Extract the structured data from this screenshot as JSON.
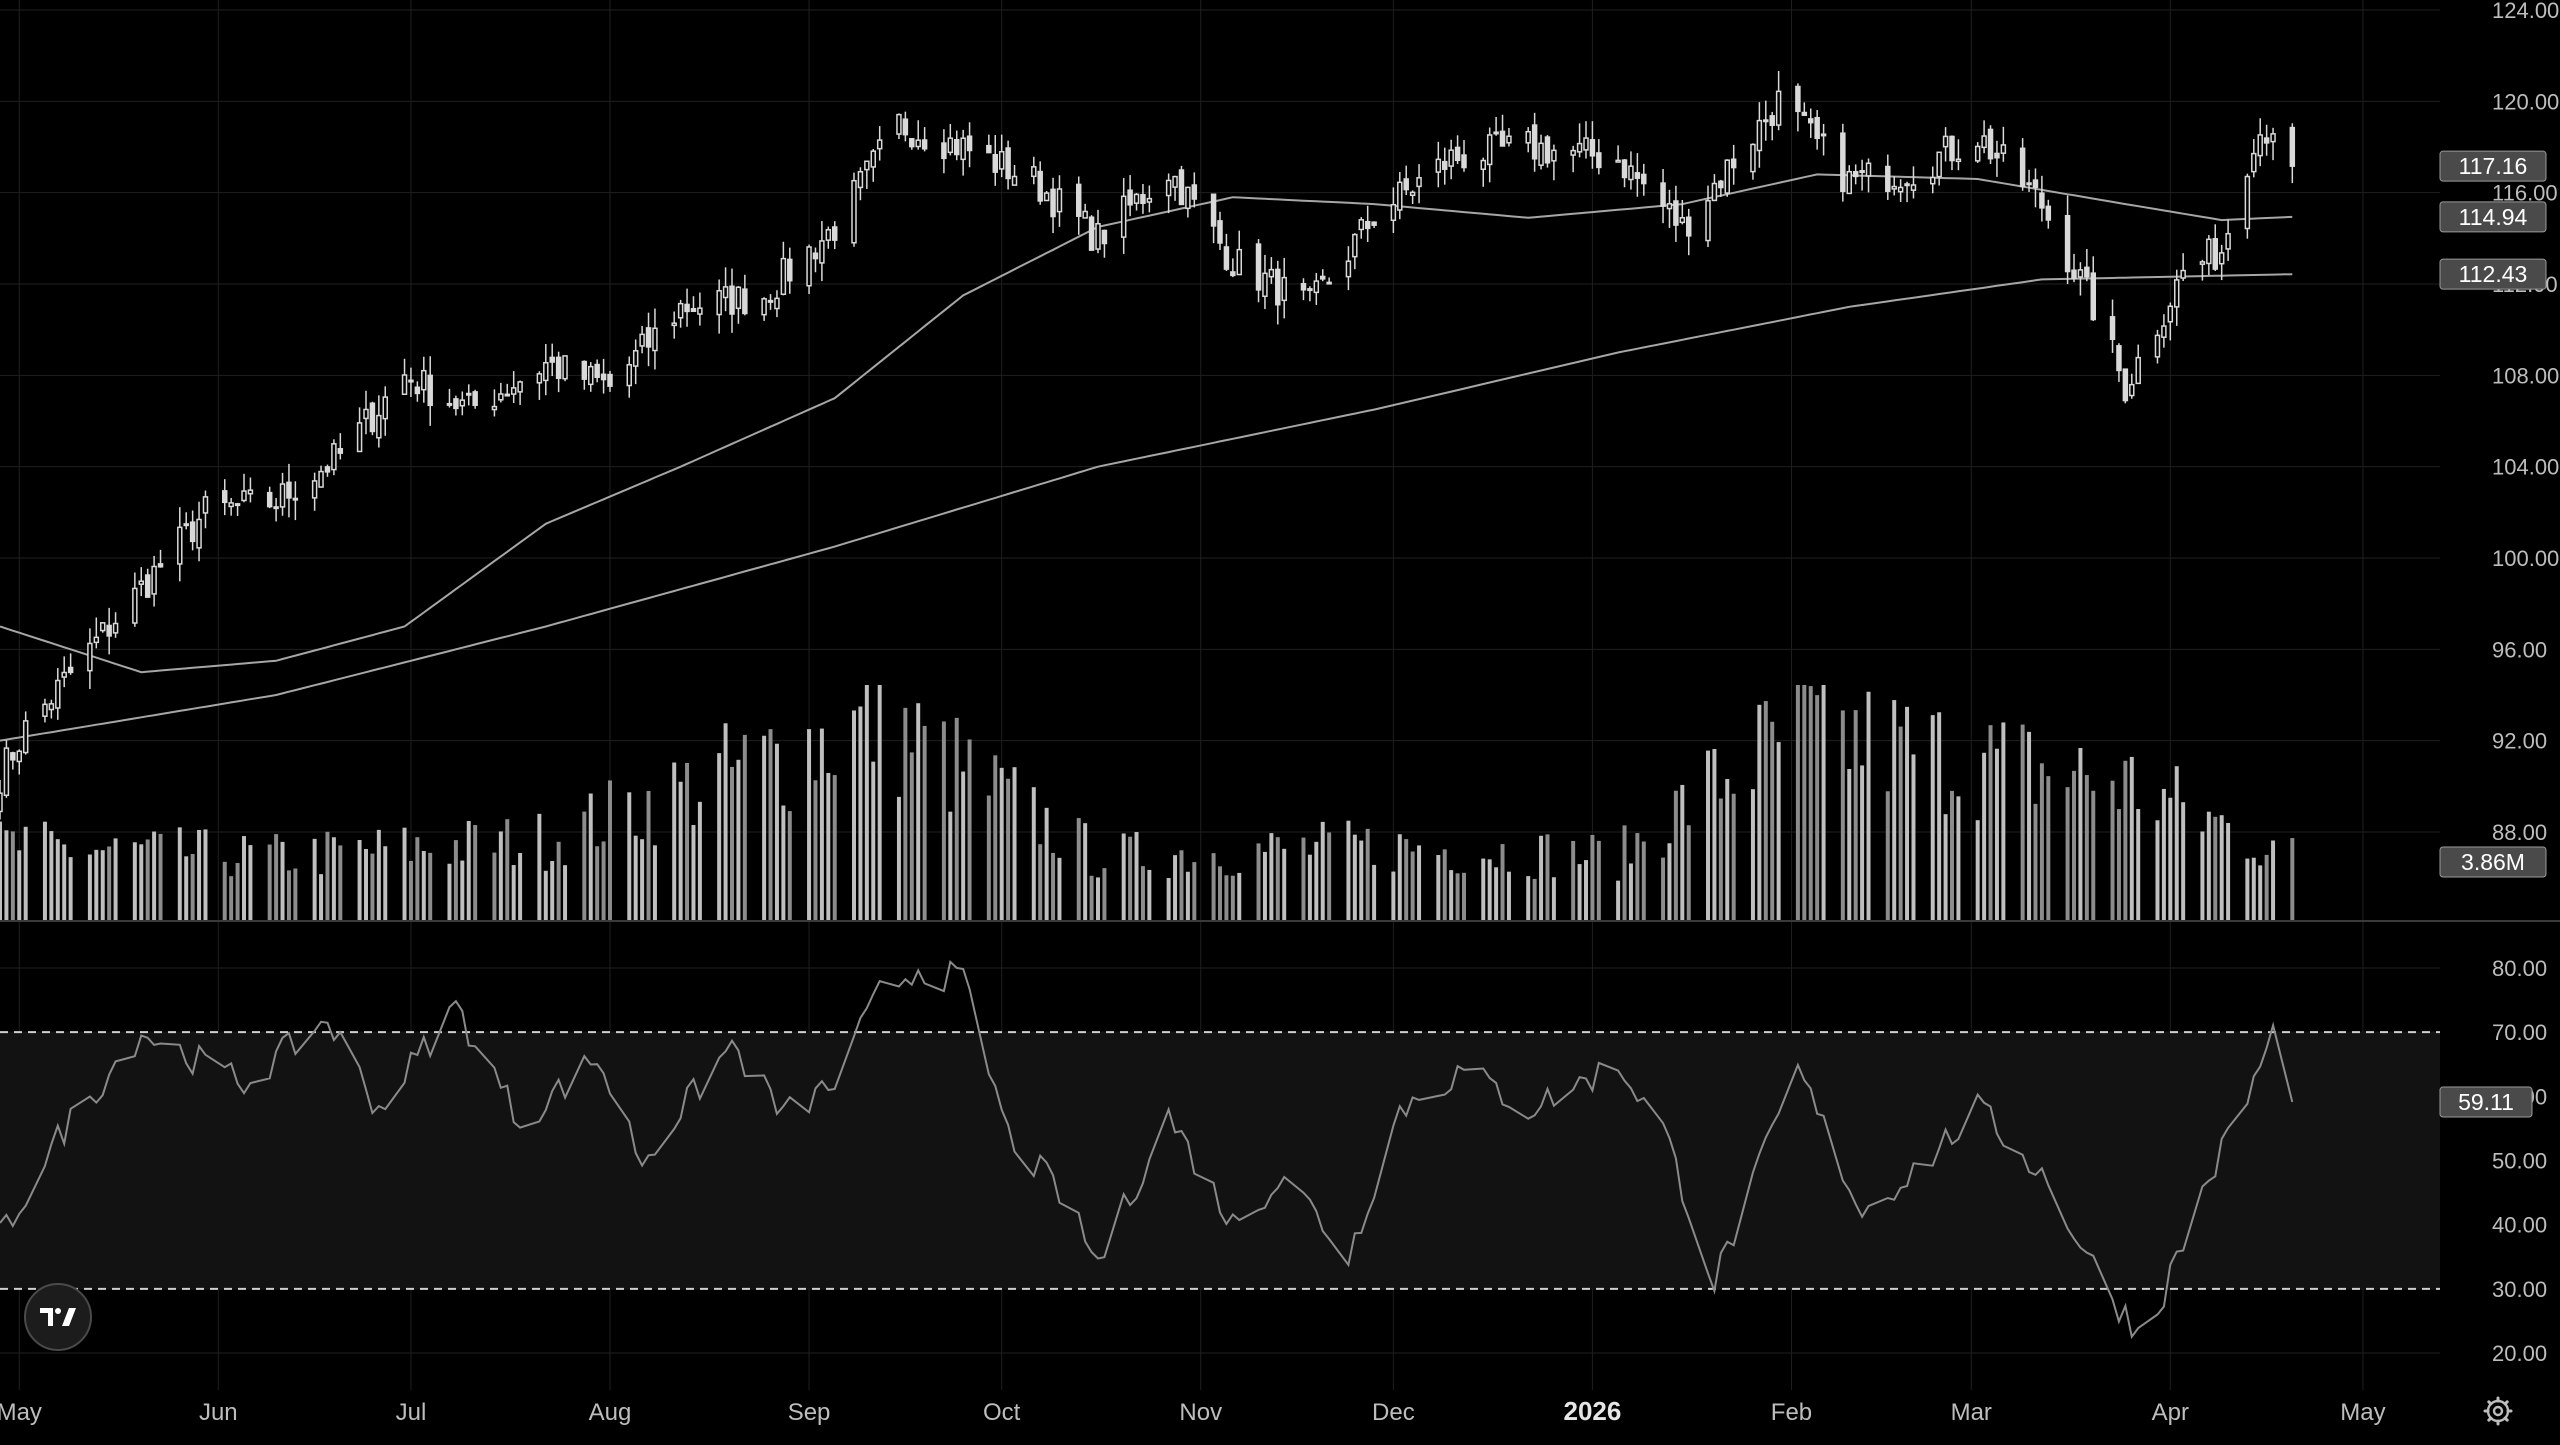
{
  "chart_data": {
    "type": "candlestick",
    "panes": {
      "price": {
        "yticks": [
          124,
          120,
          116,
          112,
          108,
          104,
          100,
          96,
          92,
          88
        ],
        "ylim": [
          86,
          124
        ],
        "series_labels": [
          {
            "value": "117.16",
            "role": "last-price"
          },
          {
            "value": "114.94",
            "role": "moving-average-short"
          },
          {
            "value": "112.43",
            "role": "moving-average-long"
          }
        ],
        "ohlc_anchors": [
          {
            "date": "2025-04-28",
            "close": 90.5
          },
          {
            "date": "2025-05-02",
            "close": 92.5
          },
          {
            "date": "2025-05-15",
            "close": 97.0
          },
          {
            "date": "2025-05-30",
            "close": 102.0
          },
          {
            "date": "2025-06-10",
            "close": 102.5
          },
          {
            "date": "2025-06-20",
            "close": 104.5
          },
          {
            "date": "2025-06-30",
            "close": 108.0
          },
          {
            "date": "2025-07-10",
            "close": 106.5
          },
          {
            "date": "2025-07-22",
            "close": 108.5
          },
          {
            "date": "2025-08-01",
            "close": 107.5
          },
          {
            "date": "2025-08-12",
            "close": 111.0
          },
          {
            "date": "2025-08-25",
            "close": 111.5
          },
          {
            "date": "2025-09-05",
            "close": 114.5
          },
          {
            "date": "2025-09-15",
            "close": 119.0
          },
          {
            "date": "2025-09-25",
            "close": 118.0
          },
          {
            "date": "2025-10-06",
            "close": 116.5
          },
          {
            "date": "2025-10-16",
            "close": 114.0
          },
          {
            "date": "2025-10-27",
            "close": 117.0
          },
          {
            "date": "2025-11-06",
            "close": 113.0
          },
          {
            "date": "2025-11-18",
            "close": 111.0
          },
          {
            "date": "2025-11-28",
            "close": 115.0
          },
          {
            "date": "2025-12-10",
            "close": 117.5
          },
          {
            "date": "2025-12-22",
            "close": 118.0
          },
          {
            "date": "2026-01-05",
            "close": 117.5
          },
          {
            "date": "2026-01-15",
            "close": 114.5
          },
          {
            "date": "2026-01-30",
            "close": 120.0
          },
          {
            "date": "2026-02-10",
            "close": 116.5
          },
          {
            "date": "2026-02-20",
            "close": 117.0
          },
          {
            "date": "2026-03-02",
            "close": 118.5
          },
          {
            "date": "2026-03-12",
            "close": 115.5
          },
          {
            "date": "2026-03-20",
            "close": 111.0
          },
          {
            "date": "2026-03-25",
            "close": 107.5
          },
          {
            "date": "2026-04-03",
            "close": 112.5
          },
          {
            "date": "2026-04-09",
            "close": 113.5
          },
          {
            "date": "2026-04-14",
            "close": 118.5
          },
          {
            "date": "2026-04-17",
            "close": 119.0
          },
          {
            "date": "2026-04-20",
            "close": 117.16
          }
        ],
        "ma_short_anchors": [
          {
            "date": "2025-04-28",
            "value": 97.0
          },
          {
            "date": "2025-05-20",
            "value": 95.0
          },
          {
            "date": "2025-06-10",
            "value": 95.5
          },
          {
            "date": "2025-06-30",
            "value": 97.0
          },
          {
            "date": "2025-07-22",
            "value": 101.5
          },
          {
            "date": "2025-08-12",
            "value": 104.0
          },
          {
            "date": "2025-09-05",
            "value": 107.0
          },
          {
            "date": "2025-09-25",
            "value": 111.5
          },
          {
            "date": "2025-10-16",
            "value": 114.5
          },
          {
            "date": "2025-11-06",
            "value": 115.8
          },
          {
            "date": "2025-11-28",
            "value": 115.5
          },
          {
            "date": "2025-12-22",
            "value": 114.9
          },
          {
            "date": "2026-01-15",
            "value": 115.5
          },
          {
            "date": "2026-02-05",
            "value": 116.8
          },
          {
            "date": "2026-03-02",
            "value": 116.6
          },
          {
            "date": "2026-03-25",
            "value": 115.5
          },
          {
            "date": "2026-04-09",
            "value": 114.8
          },
          {
            "date": "2026-04-20",
            "value": 114.94
          }
        ],
        "ma_long_anchors": [
          {
            "date": "2025-04-28",
            "value": 92.0
          },
          {
            "date": "2025-06-10",
            "value": 94.0
          },
          {
            "date": "2025-07-22",
            "value": 97.0
          },
          {
            "date": "2025-09-05",
            "value": 100.5
          },
          {
            "date": "2025-10-16",
            "value": 104.0
          },
          {
            "date": "2025-11-28",
            "value": 106.5
          },
          {
            "date": "2026-01-05",
            "value": 109.0
          },
          {
            "date": "2026-02-10",
            "value": 111.0
          },
          {
            "date": "2026-03-12",
            "value": 112.2
          },
          {
            "date": "2026-04-20",
            "value": 112.43
          }
        ]
      },
      "volume": {
        "last_label": "3.86M",
        "relative_anchors": [
          {
            "date": "2025-04-28",
            "value": 0.35
          },
          {
            "date": "2025-06-10",
            "value": 0.3
          },
          {
            "date": "2025-07-22",
            "value": 0.38
          },
          {
            "date": "2025-09-12",
            "value": 0.95
          },
          {
            "date": "2025-10-16",
            "value": 0.3
          },
          {
            "date": "2025-11-28",
            "value": 0.35
          },
          {
            "date": "2026-01-05",
            "value": 0.3
          },
          {
            "date": "2026-01-20",
            "value": 0.65
          },
          {
            "date": "2026-02-02",
            "value": 0.9
          },
          {
            "date": "2026-03-02",
            "value": 0.75
          },
          {
            "date": "2026-03-25",
            "value": 0.65
          },
          {
            "date": "2026-04-20",
            "value": 0.3
          }
        ]
      },
      "rsi": {
        "yticks": [
          80,
          70,
          60,
          50,
          40,
          30,
          20
        ],
        "ylim": [
          17,
          85
        ],
        "overbought": 70,
        "oversold": 30,
        "last_label": "59.11",
        "anchors": [
          {
            "date": "2025-04-28",
            "value": 38
          },
          {
            "date": "2025-05-08",
            "value": 55
          },
          {
            "date": "2025-05-20",
            "value": 70
          },
          {
            "date": "2025-06-05",
            "value": 62
          },
          {
            "date": "2025-06-18",
            "value": 72
          },
          {
            "date": "2025-06-26",
            "value": 58
          },
          {
            "date": "2025-07-08",
            "value": 74
          },
          {
            "date": "2025-07-18",
            "value": 56
          },
          {
            "date": "2025-07-30",
            "value": 66
          },
          {
            "date": "2025-08-06",
            "value": 50
          },
          {
            "date": "2025-08-20",
            "value": 68
          },
          {
            "date": "2025-08-28",
            "value": 57
          },
          {
            "date": "2025-09-05",
            "value": 62
          },
          {
            "date": "2025-09-12",
            "value": 76
          },
          {
            "date": "2025-09-18",
            "value": 80
          },
          {
            "date": "2025-09-25",
            "value": 78
          },
          {
            "date": "2025-10-02",
            "value": 54
          },
          {
            "date": "2025-10-10",
            "value": 45
          },
          {
            "date": "2025-10-16",
            "value": 34
          },
          {
            "date": "2025-10-27",
            "value": 57
          },
          {
            "date": "2025-11-06",
            "value": 40
          },
          {
            "date": "2025-11-14",
            "value": 48
          },
          {
            "date": "2025-11-24",
            "value": 35
          },
          {
            "date": "2025-12-02",
            "value": 58
          },
          {
            "date": "2025-12-12",
            "value": 64
          },
          {
            "date": "2025-12-22",
            "value": 58
          },
          {
            "date": "2026-01-05",
            "value": 65
          },
          {
            "date": "2026-01-12",
            "value": 55
          },
          {
            "date": "2026-01-20",
            "value": 31
          },
          {
            "date": "2026-02-02",
            "value": 64
          },
          {
            "date": "2026-02-12",
            "value": 42
          },
          {
            "date": "2026-02-22",
            "value": 50
          },
          {
            "date": "2026-03-02",
            "value": 58
          },
          {
            "date": "2026-03-12",
            "value": 48
          },
          {
            "date": "2026-03-22",
            "value": 30
          },
          {
            "date": "2026-03-28",
            "value": 22
          },
          {
            "date": "2026-04-06",
            "value": 45
          },
          {
            "date": "2026-04-14",
            "value": 62
          },
          {
            "date": "2026-04-17",
            "value": 70
          },
          {
            "date": "2026-04-20",
            "value": 59.11
          }
        ]
      }
    },
    "time_axis": [
      {
        "label": "May",
        "date": "2025-05-01"
      },
      {
        "label": "Jun",
        "date": "2025-06-01"
      },
      {
        "label": "Jul",
        "date": "2025-07-01"
      },
      {
        "label": "Aug",
        "date": "2025-08-01"
      },
      {
        "label": "Sep",
        "date": "2025-09-01"
      },
      {
        "label": "Oct",
        "date": "2025-10-01"
      },
      {
        "label": "Nov",
        "date": "2025-11-01"
      },
      {
        "label": "Dec",
        "date": "2025-12-01"
      },
      {
        "label": "2026",
        "date": "2026-01-01",
        "emphasis": true
      },
      {
        "label": "Feb",
        "date": "2026-02-01"
      },
      {
        "label": "Mar",
        "date": "2026-03-01"
      },
      {
        "label": "Apr",
        "date": "2026-04-01"
      },
      {
        "label": "May",
        "date": "2026-05-01"
      }
    ],
    "x_range": [
      "2025-04-28",
      "2026-05-13"
    ],
    "last_date": "2026-04-20",
    "grid": true
  },
  "colors": {
    "background": "#000000",
    "grid": "#1f1f1f",
    "candles": "#d9d9d9",
    "ma": "#a6a6a6",
    "volume_light": "#bfbfbf",
    "volume_dark": "#8c8c8c",
    "rsi_line": "#8a8a8a",
    "rsi_band": "#121212"
  },
  "icons": {
    "logo": "tradingview-logo-icon",
    "settings": "gear-icon"
  }
}
